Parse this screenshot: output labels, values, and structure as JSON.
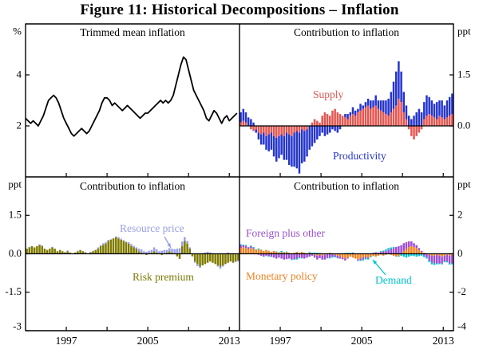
{
  "title": "Figure 11: Historical Decompositions – Inflation",
  "axes": {
    "x": {
      "range": [
        1993,
        2014
      ],
      "tick_years": [
        1997,
        2001,
        2005,
        2009,
        2013
      ],
      "label_years": [
        1997,
        2005,
        2013
      ]
    }
  },
  "annotations": {
    "supply": {
      "text": "Supply",
      "color": "#e8544e"
    },
    "productivity": {
      "text": "Productivity",
      "color": "#2434d0"
    },
    "resource_price": {
      "text": "Resource price",
      "color": "#98a0ea"
    },
    "risk_premium": {
      "text": "Risk premium",
      "color": "#7f7b00"
    },
    "foreign": {
      "text": "Foreign plus other",
      "color": "#9e4fd6"
    },
    "monetary": {
      "text": "Monetary policy",
      "color": "#f5821f"
    },
    "demand": {
      "text": "Demand",
      "color": "#00c8d2"
    }
  },
  "chart_data": [
    {
      "type": "line",
      "title": "Trimmed mean inflation",
      "unit": "%",
      "axis_side": "left",
      "ylim": [
        0,
        6
      ],
      "yticks": [
        {
          "v": 2,
          "label": "2"
        },
        {
          "v": 4,
          "label": "4"
        }
      ],
      "x_start": 1993,
      "x_step": 0.25,
      "series": [
        {
          "name": "Trimmed mean inflation",
          "color": "#000000",
          "values": [
            2.3,
            2.2,
            2.1,
            2.2,
            2.1,
            2.0,
            2.2,
            2.4,
            2.7,
            3.0,
            3.1,
            3.2,
            3.1,
            2.9,
            2.6,
            2.3,
            2.1,
            1.9,
            1.7,
            1.6,
            1.7,
            1.8,
            1.9,
            1.8,
            1.7,
            1.8,
            2.0,
            2.2,
            2.4,
            2.6,
            2.9,
            3.1,
            3.1,
            3.0,
            2.8,
            2.9,
            2.8,
            2.7,
            2.6,
            2.7,
            2.8,
            2.7,
            2.6,
            2.5,
            2.4,
            2.3,
            2.4,
            2.5,
            2.5,
            2.6,
            2.7,
            2.8,
            2.9,
            3.0,
            2.9,
            3.0,
            2.9,
            3.0,
            3.2,
            3.6,
            4.0,
            4.4,
            4.7,
            4.6,
            4.2,
            3.8,
            3.4,
            3.2,
            3.0,
            2.8,
            2.6,
            2.3,
            2.2,
            2.4,
            2.6,
            2.5,
            2.3,
            2.1,
            2.3,
            2.4,
            2.2,
            2.3,
            2.4,
            2.5
          ]
        }
      ]
    },
    {
      "type": "bar",
      "title": "Contribution to inflation",
      "unit": "ppt",
      "axis_side": "right",
      "ylim": [
        -1.5,
        3
      ],
      "yticks": [
        {
          "v": 0,
          "label": "0.0"
        },
        {
          "v": 1.5,
          "label": "1.5"
        }
      ],
      "x_start": 1993,
      "x_step": 0.25,
      "series": [
        {
          "name": "Supply",
          "color": "#e8544e",
          "values": [
            0.1,
            0.15,
            0.1,
            0.0,
            -0.1,
            -0.15,
            -0.1,
            -0.2,
            -0.25,
            -0.2,
            -0.3,
            -0.25,
            -0.2,
            -0.3,
            -0.35,
            -0.3,
            -0.25,
            -0.3,
            -0.2,
            -0.25,
            -0.3,
            -0.2,
            -0.15,
            -0.2,
            -0.1,
            -0.15,
            -0.1,
            0.0,
            0.1,
            0.2,
            0.15,
            0.1,
            0.3,
            0.4,
            0.35,
            0.3,
            0.45,
            0.5,
            0.4,
            0.35,
            0.3,
            0.25,
            0.2,
            0.3,
            0.35,
            0.3,
            0.4,
            0.45,
            0.5,
            0.55,
            0.6,
            0.5,
            0.55,
            0.6,
            0.5,
            0.45,
            0.4,
            0.35,
            0.3,
            0.4,
            0.5,
            0.6,
            0.8,
            0.7,
            0.4,
            0.2,
            -0.1,
            -0.3,
            -0.4,
            -0.3,
            -0.2,
            -0.1,
            0.2,
            0.3,
            0.35,
            0.3,
            0.25,
            0.2,
            0.3,
            0.25,
            0.2,
            0.25,
            0.3,
            0.35
          ]
        },
        {
          "name": "Productivity",
          "color": "#2434d0",
          "values": [
            0.3,
            0.35,
            0.3,
            0.25,
            0.2,
            0.1,
            -0.1,
            -0.2,
            -0.3,
            -0.35,
            -0.4,
            -0.5,
            -0.5,
            -0.6,
            -0.7,
            -0.65,
            -0.6,
            -0.7,
            -0.8,
            -0.9,
            -0.9,
            -1.0,
            -1.1,
            -1.2,
            -1.0,
            -0.9,
            -0.8,
            -0.7,
            -0.6,
            -0.5,
            -0.4,
            -0.3,
            -0.2,
            -0.3,
            -0.25,
            -0.2,
            -0.1,
            -0.15,
            -0.2,
            -0.1,
            0.0,
            0.1,
            0.15,
            0.1,
            0.2,
            0.15,
            0.1,
            0.2,
            0.1,
            0.15,
            0.2,
            0.25,
            0.2,
            0.3,
            0.25,
            0.3,
            0.35,
            0.4,
            0.5,
            0.6,
            0.8,
            1.0,
            1.1,
            0.9,
            0.6,
            0.4,
            0.3,
            0.2,
            0.3,
            0.4,
            0.5,
            0.4,
            0.5,
            0.6,
            0.5,
            0.45,
            0.4,
            0.5,
            0.45,
            0.5,
            0.4,
            0.5,
            0.55,
            0.6
          ]
        }
      ]
    },
    {
      "type": "bar",
      "title": "Contribution to inflation",
      "unit": "ppt",
      "axis_side": "left",
      "ylim": [
        -3,
        3
      ],
      "yticks": [
        {
          "v": -3,
          "label": "-3"
        },
        {
          "v": -1.5,
          "label": "-1.5"
        },
        {
          "v": 0,
          "label": "0.0"
        },
        {
          "v": 1.5,
          "label": "1.5"
        }
      ],
      "x_start": 1993,
      "x_step": 0.25,
      "series": [
        {
          "name": "Risk premium",
          "color": "#7f7b00",
          "values": [
            0.2,
            0.25,
            0.3,
            0.25,
            0.3,
            0.35,
            0.3,
            0.2,
            0.15,
            0.2,
            0.25,
            0.2,
            0.1,
            0.15,
            0.1,
            0.05,
            0.1,
            0.05,
            0.0,
            0.05,
            0.1,
            0.15,
            0.1,
            0.05,
            0.0,
            0.05,
            0.1,
            0.15,
            0.2,
            0.3,
            0.35,
            0.4,
            0.5,
            0.55,
            0.6,
            0.65,
            0.6,
            0.55,
            0.5,
            0.45,
            0.4,
            0.3,
            0.25,
            0.2,
            0.1,
            0.05,
            0.0,
            -0.05,
            0.0,
            0.05,
            0.1,
            0.05,
            0.0,
            -0.05,
            0.0,
            0.05,
            0.1,
            0.05,
            0.0,
            -0.1,
            -0.2,
            0.3,
            0.5,
            0.4,
            0.2,
            -0.1,
            -0.3,
            -0.4,
            -0.5,
            -0.45,
            -0.4,
            -0.35,
            -0.3,
            -0.35,
            -0.4,
            -0.45,
            -0.5,
            -0.45,
            -0.4,
            -0.35,
            -0.3,
            -0.35,
            -0.3,
            -0.25
          ]
        },
        {
          "name": "Resource price",
          "color": "#98a0ea",
          "values": [
            0.0,
            0.02,
            0.0,
            -0.02,
            0.0,
            0.02,
            0.03,
            0.0,
            -0.02,
            0.0,
            0.02,
            0.0,
            0.0,
            -0.02,
            0.0,
            0.02,
            0.03,
            0.0,
            -0.02,
            0.0,
            0.02,
            0.0,
            0.0,
            0.02,
            0.0,
            0.03,
            0.02,
            0.0,
            0.05,
            0.04,
            0.06,
            0.05,
            0.04,
            0.02,
            0.0,
            0.03,
            0.05,
            0.04,
            0.03,
            0.02,
            0.05,
            0.08,
            0.06,
            0.05,
            0.1,
            0.12,
            0.1,
            0.08,
            0.12,
            0.1,
            0.15,
            0.12,
            0.1,
            0.12,
            0.15,
            0.1,
            0.12,
            0.15,
            0.18,
            0.2,
            0.22,
            0.18,
            0.15,
            0.1,
            0.05,
            0.0,
            -0.05,
            -0.08,
            -0.05,
            0.0,
            0.05,
            0.08,
            0.05,
            0.02,
            0.0,
            -0.05,
            -0.08,
            -0.05,
            0.0,
            0.05,
            0.02,
            0.0,
            -0.02,
            -0.05
          ]
        }
      ]
    },
    {
      "type": "bar",
      "title": "Contribution to inflation",
      "unit": "ppt",
      "axis_side": "right",
      "ylim": [
        -4,
        4
      ],
      "yticks": [
        {
          "v": -4,
          "label": "-4"
        },
        {
          "v": -2,
          "label": "-2"
        },
        {
          "v": 0,
          "label": "0"
        },
        {
          "v": 2,
          "label": "2"
        }
      ],
      "x_start": 1993,
      "x_step": 0.25,
      "series": [
        {
          "name": "Monetary policy",
          "color": "#f5821f",
          "values": [
            0.3,
            0.35,
            0.3,
            0.25,
            0.3,
            0.25,
            0.2,
            0.25,
            0.2,
            0.15,
            0.2,
            0.15,
            0.1,
            0.15,
            0.1,
            0.05,
            0.1,
            0.05,
            0.1,
            0.05,
            0.0,
            0.05,
            0.1,
            0.05,
            0.1,
            0.05,
            0.0,
            0.05,
            0.0,
            -0.05,
            -0.1,
            -0.05,
            -0.1,
            -0.05,
            0.0,
            0.05,
            0.0,
            -0.05,
            -0.1,
            -0.15,
            -0.2,
            -0.25,
            -0.2,
            -0.15,
            -0.2,
            -0.25,
            -0.3,
            -0.25,
            -0.2,
            -0.15,
            -0.2,
            -0.15,
            -0.1,
            -0.15,
            -0.1,
            -0.05,
            -0.1,
            -0.05,
            0.0,
            -0.05,
            -0.1,
            -0.15,
            -0.1,
            0.0,
            0.15,
            0.25,
            0.35,
            0.4,
            0.35,
            0.3,
            0.2,
            0.1,
            0.05,
            0.0,
            -0.05,
            -0.1,
            -0.1,
            -0.05,
            -0.1,
            -0.15,
            -0.1,
            -0.05,
            -0.1,
            -0.05
          ]
        },
        {
          "name": "Foreign plus other",
          "color": "#9e4fd6",
          "values": [
            0.15,
            0.1,
            0.12,
            0.08,
            0.1,
            0.05,
            0.0,
            -0.05,
            -0.1,
            -0.15,
            -0.1,
            -0.12,
            -0.15,
            -0.2,
            -0.25,
            -0.2,
            -0.25,
            -0.3,
            -0.28,
            -0.25,
            -0.3,
            -0.28,
            -0.25,
            -0.2,
            -0.22,
            -0.25,
            -0.2,
            -0.15,
            -0.1,
            -0.15,
            -0.2,
            -0.18,
            -0.2,
            -0.25,
            -0.22,
            -0.2,
            -0.15,
            -0.1,
            -0.12,
            -0.1,
            -0.08,
            -0.1,
            -0.05,
            0.0,
            0.05,
            0.0,
            -0.05,
            -0.08,
            -0.1,
            -0.08,
            -0.05,
            0.0,
            0.05,
            0.08,
            0.05,
            0.1,
            0.12,
            0.15,
            0.2,
            0.25,
            0.3,
            0.35,
            0.4,
            0.45,
            0.4,
            0.35,
            0.3,
            0.25,
            0.2,
            0.15,
            0.1,
            0.05,
            -0.1,
            -0.2,
            -0.3,
            -0.35,
            -0.4,
            -0.45,
            -0.4,
            -0.35,
            -0.3,
            -0.35,
            -0.4,
            -0.45
          ]
        },
        {
          "name": "Demand",
          "color": "#00c8d2",
          "values": [
            0.05,
            0.03,
            0.04,
            0.02,
            0.03,
            0.05,
            0.04,
            0.03,
            0.02,
            0.0,
            -0.02,
            -0.03,
            -0.02,
            0.0,
            0.02,
            0.03,
            0.05,
            0.04,
            0.02,
            0.0,
            -0.02,
            -0.03,
            -0.05,
            -0.04,
            -0.02,
            0.0,
            0.02,
            0.04,
            0.05,
            0.06,
            0.05,
            0.04,
            0.02,
            0.0,
            -0.02,
            -0.04,
            -0.05,
            -0.04,
            -0.02,
            0.0,
            0.02,
            0.04,
            0.05,
            0.04,
            0.02,
            0.0,
            -0.02,
            -0.04,
            -0.05,
            -0.06,
            -0.05,
            -0.04,
            -0.02,
            0.0,
            0.02,
            0.04,
            0.05,
            0.08,
            0.1,
            0.08,
            0.05,
            0.0,
            -0.05,
            -0.1,
            -0.15,
            -0.2,
            -0.15,
            -0.1,
            -0.12,
            -0.15,
            -0.12,
            -0.1,
            -0.08,
            -0.05,
            -0.08,
            -0.1,
            -0.08,
            -0.05,
            -0.04,
            -0.05,
            -0.04,
            -0.05,
            -0.06,
            -0.05
          ]
        }
      ]
    }
  ]
}
